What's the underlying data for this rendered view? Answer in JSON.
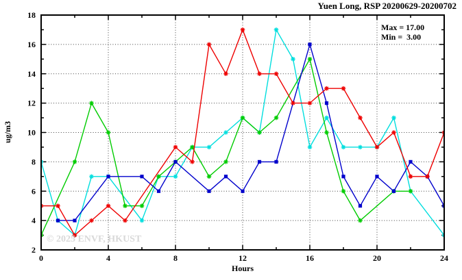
{
  "title": "Yuen Long, RSP 20200629-20200702",
  "annotation": {
    "max_label": "Max = 17.00",
    "min_label": "Min =  3.00"
  },
  "watermark": "© 2025 ENVF, HKUST",
  "chart_data": {
    "type": "line",
    "title": "Yuen Long, RSP 20200629-20200702",
    "xlabel": "Hours",
    "ylabel": "ug/m3",
    "xlim": [
      0,
      24
    ],
    "ylim": [
      2,
      18
    ],
    "x_major_ticks": [
      0,
      4,
      8,
      12,
      16,
      20,
      24
    ],
    "x_minor_ticks": [
      2,
      6,
      10,
      14,
      18,
      22
    ],
    "y_major_ticks": [
      2,
      4,
      6,
      8,
      10,
      12,
      14,
      16,
      18
    ],
    "y_minor_ticks": [
      3,
      5,
      7,
      9,
      11,
      13,
      15,
      17
    ],
    "grid": true,
    "legend_position": "none",
    "max_value": 17.0,
    "min_value": 3.0,
    "grid_color": "#404040",
    "series": [
      {
        "name": "series-cyan",
        "color": "#00dede",
        "marker": "asterisk",
        "points": [
          [
            0,
            8
          ],
          [
            1,
            4
          ],
          [
            2,
            3
          ],
          [
            3,
            7
          ],
          [
            4,
            7
          ],
          [
            6,
            4
          ],
          [
            7,
            7
          ],
          [
            8,
            7
          ],
          [
            9,
            9
          ],
          [
            10,
            9
          ],
          [
            11,
            10
          ],
          [
            12,
            11
          ],
          [
            13,
            10
          ],
          [
            14,
            17
          ],
          [
            15,
            15
          ],
          [
            16,
            9
          ],
          [
            17,
            11
          ],
          [
            18,
            9
          ],
          [
            19,
            9
          ],
          [
            20,
            9
          ],
          [
            21,
            11
          ],
          [
            22,
            6
          ],
          [
            24,
            3
          ]
        ]
      },
      {
        "name": "series-green",
        "color": "#00cc00",
        "marker": "asterisk",
        "points": [
          [
            0,
            3
          ],
          [
            2,
            8
          ],
          [
            3,
            12
          ],
          [
            4,
            10
          ],
          [
            5,
            5
          ],
          [
            6,
            5
          ],
          [
            7,
            7
          ],
          [
            8,
            8
          ],
          [
            9,
            9
          ],
          [
            10,
            7
          ],
          [
            11,
            8
          ],
          [
            12,
            11
          ],
          [
            13,
            10
          ],
          [
            14,
            11
          ],
          [
            16,
            15
          ],
          [
            17,
            10
          ],
          [
            18,
            6
          ],
          [
            19,
            4
          ],
          [
            21,
            6
          ],
          [
            22,
            6
          ]
        ]
      },
      {
        "name": "series-blue",
        "color": "#0000cc",
        "marker": "square",
        "points": [
          [
            1,
            4
          ],
          [
            2,
            4
          ],
          [
            4,
            7
          ],
          [
            6,
            7
          ],
          [
            7,
            6
          ],
          [
            8,
            8
          ],
          [
            10,
            6
          ],
          [
            11,
            7
          ],
          [
            12,
            6
          ],
          [
            13,
            8
          ],
          [
            14,
            8
          ],
          [
            16,
            16
          ],
          [
            17,
            12
          ],
          [
            18,
            7
          ],
          [
            19,
            5
          ],
          [
            20,
            7
          ],
          [
            21,
            6
          ],
          [
            22,
            8
          ],
          [
            23,
            7
          ],
          [
            24,
            5
          ]
        ]
      },
      {
        "name": "series-red",
        "color": "#ee0000",
        "marker": "asterisk",
        "points": [
          [
            0,
            5
          ],
          [
            1,
            5
          ],
          [
            2,
            3
          ],
          [
            3,
            4
          ],
          [
            4,
            5
          ],
          [
            5,
            4
          ],
          [
            8,
            9
          ],
          [
            9,
            8
          ],
          [
            10,
            16
          ],
          [
            11,
            14
          ],
          [
            12,
            17
          ],
          [
            13,
            14
          ],
          [
            14,
            14
          ],
          [
            15,
            12
          ],
          [
            16,
            12
          ],
          [
            17,
            13
          ],
          [
            18,
            13
          ],
          [
            19,
            11
          ],
          [
            20,
            9
          ],
          [
            21,
            10
          ],
          [
            22,
            7
          ],
          [
            23,
            7
          ],
          [
            24,
            10
          ]
        ]
      }
    ]
  }
}
